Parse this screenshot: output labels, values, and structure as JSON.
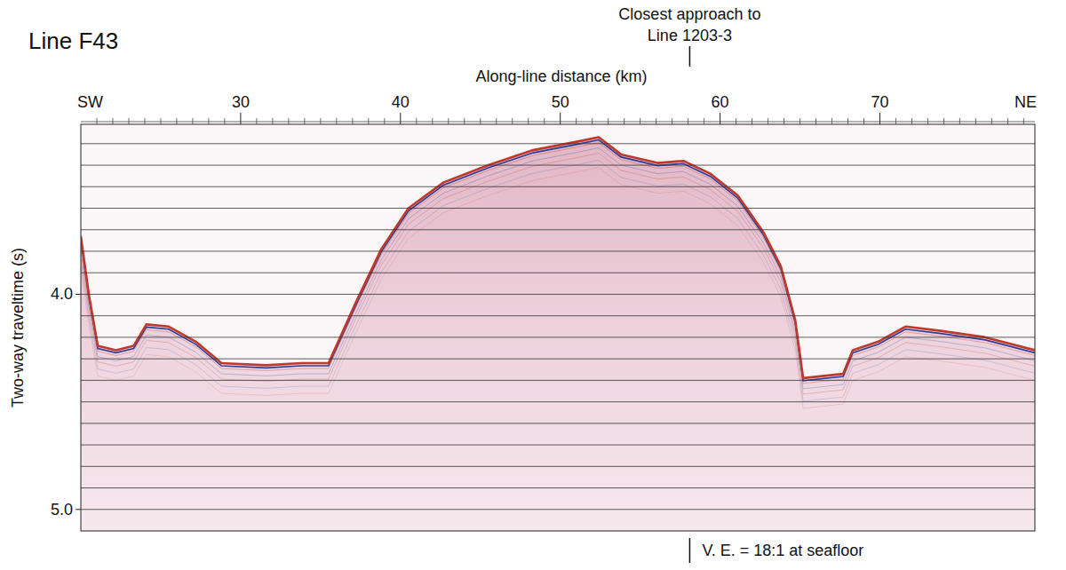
{
  "chart_data": {
    "type": "seismic",
    "title": "Line F43",
    "x_label": "Along-line distance (km)",
    "y_label": "Two-way traveltime (s)",
    "x_start_label": "SW",
    "x_end_label": "NE",
    "marker_label": [
      "Closest approach to",
      "Line 1203-3"
    ],
    "marker_x": 58.1,
    "note": "V. E. = 18:1 at seafloor",
    "xlim": [
      20,
      79.7
    ],
    "ylim": [
      5.1,
      3.21
    ],
    "xticks": [
      30,
      40,
      50,
      60,
      70
    ],
    "minor_xticks": [
      21,
      22,
      23,
      24,
      25,
      26,
      27,
      28,
      29,
      31,
      32,
      33,
      34,
      35,
      36,
      37,
      38,
      39,
      41,
      42,
      43,
      44,
      45,
      46,
      47,
      48,
      49,
      51,
      52,
      53,
      54,
      55,
      56,
      57,
      58,
      59,
      61,
      62,
      63,
      64,
      65,
      66,
      67,
      68,
      69,
      71,
      72,
      73,
      74,
      75,
      76,
      77,
      78,
      79
    ],
    "yticks": [
      {
        "value": 4.0,
        "label": "4.0"
      },
      {
        "value": 5.0,
        "label": "5.0"
      }
    ],
    "grid": true,
    "grid_lines": [
      3.3,
      3.4,
      3.5,
      3.6,
      3.7,
      3.8,
      3.9,
      4.0,
      4.1,
      4.2,
      4.3,
      4.4,
      4.5,
      4.6,
      4.7,
      4.8,
      4.9,
      5.0
    ],
    "color": "#c0392b",
    "x": [
      20.0,
      20.5,
      21.06,
      22.2,
      23.3,
      24.1,
      25.5,
      27.2,
      28.8,
      31.6,
      33.8,
      35.5,
      37.2,
      38.8,
      40.5,
      42.7,
      45.5,
      48.3,
      51.1,
      52.4,
      53.8,
      56.1,
      57.7,
      59.4,
      61.1,
      62.7,
      63.8,
      64.7,
      65.2,
      67.7,
      68.3,
      69.9,
      71.6,
      73.8,
      76.6,
      79.7
    ],
    "values": [
      3.73,
      4.0,
      4.24,
      4.26,
      4.24,
      4.14,
      4.15,
      4.22,
      4.32,
      4.33,
      4.32,
      4.32,
      4.04,
      3.79,
      3.6,
      3.48,
      3.4,
      3.33,
      3.29,
      3.27,
      3.35,
      3.39,
      3.38,
      3.44,
      3.54,
      3.71,
      3.87,
      4.12,
      4.39,
      4.37,
      4.26,
      4.22,
      4.15,
      4.17,
      4.2,
      4.26
    ]
  }
}
